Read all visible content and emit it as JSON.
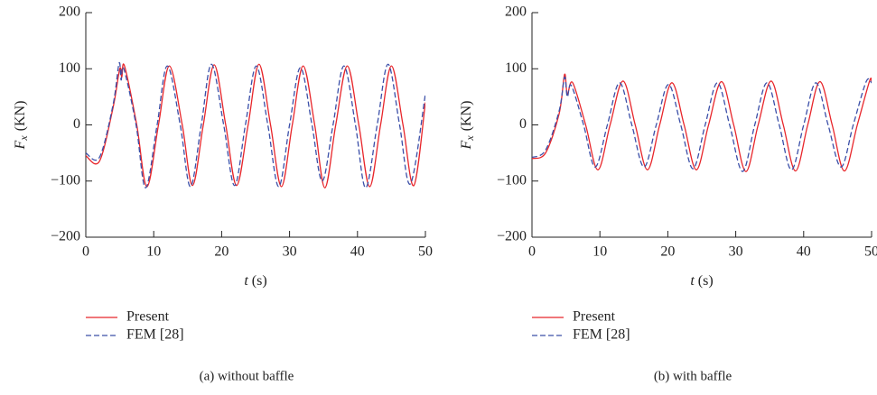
{
  "chart_data": [
    {
      "type": "line",
      "caption": "(a)  without baffle",
      "xlabel_symbol": "t",
      "xlabel_unit": "(s)",
      "ylabel_symbol": "F",
      "ylabel_subscript": "x",
      "ylabel_unit": "(KN)",
      "xlim": [
        0,
        50
      ],
      "xticks": [
        0,
        10,
        20,
        30,
        40,
        50
      ],
      "ylim": [
        -200,
        200
      ],
      "yticks": [
        {
          "value": -200,
          "label": "−200"
        },
        {
          "value": -100,
          "label": "−100"
        },
        0,
        100,
        200
      ],
      "series": [
        {
          "name": "Present",
          "color": "#e8262b",
          "dash": "solid",
          "x": [
            0,
            2,
            4,
            5,
            5.3,
            5.7,
            7.5,
            9,
            10.7,
            12.3,
            14.2,
            15.7,
            17.3,
            18.9,
            20.6,
            22.2,
            23.9,
            25.5,
            27.2,
            28.8,
            30.4,
            32,
            33.7,
            35.2,
            36.8,
            38.5,
            40.2,
            41.8,
            43.4,
            45,
            46.7,
            48.3,
            50
          ],
          "values": [
            -55,
            -65,
            30,
            100,
            85,
            105,
            0,
            -110,
            0,
            105,
            0,
            -108,
            0,
            107,
            0,
            -108,
            0,
            108,
            0,
            -110,
            0,
            105,
            0,
            -112,
            0,
            105,
            0,
            -110,
            0,
            105,
            0,
            -108,
            40
          ]
        },
        {
          "name": "FEM [28]",
          "color": "#3b4fa8",
          "dash": "dashed",
          "x": [
            0,
            2,
            4,
            4.9,
            5.2,
            5.6,
            7.4,
            8.8,
            10.5,
            12,
            13.9,
            15.4,
            17,
            18.5,
            20.3,
            21.9,
            23.5,
            25.1,
            26.8,
            28.4,
            30,
            31.6,
            33.3,
            34.8,
            36.4,
            38,
            39.7,
            41.2,
            42.9,
            44.5,
            46.2,
            47.8,
            50
          ],
          "values": [
            -50,
            -58,
            35,
            110,
            80,
            100,
            0,
            -112,
            0,
            105,
            0,
            -110,
            0,
            108,
            0,
            -108,
            0,
            105,
            0,
            -110,
            0,
            102,
            0,
            -100,
            0,
            105,
            0,
            -112,
            0,
            108,
            0,
            -105,
            55
          ]
        }
      ]
    },
    {
      "type": "line",
      "caption": "(b)  with baffle",
      "xlabel_symbol": "t",
      "xlabel_unit": "(s)",
      "ylabel_symbol": "F",
      "ylabel_subscript": "x",
      "ylabel_unit": "(KN)",
      "xlim": [
        0,
        50
      ],
      "xticks": [
        0,
        10,
        20,
        30,
        40,
        50
      ],
      "ylim": [
        -200,
        200
      ],
      "yticks": [
        {
          "value": -200,
          "label": "−200"
        },
        {
          "value": -100,
          "label": "−100"
        },
        0,
        100,
        200
      ],
      "series": [
        {
          "name": "Present",
          "color": "#e8262b",
          "dash": "solid",
          "x": [
            0,
            2,
            4,
            4.8,
            5.2,
            6,
            7.9,
            9.7,
            11.5,
            13.4,
            15.2,
            17,
            18.8,
            20.6,
            22.4,
            24.2,
            26,
            27.9,
            29.7,
            31.5,
            33.3,
            35.2,
            37,
            38.8,
            40.6,
            42.4,
            44.2,
            46,
            47.9,
            49.7,
            50
          ],
          "values": [
            -60,
            -50,
            20,
            90,
            55,
            75,
            0,
            -80,
            0,
            78,
            0,
            -80,
            0,
            75,
            0,
            -80,
            0,
            77,
            0,
            -83,
            0,
            78,
            0,
            -82,
            0,
            77,
            0,
            -82,
            0,
            78,
            76
          ]
        },
        {
          "name": "FEM [28]",
          "color": "#3b4fa8",
          "dash": "dashed",
          "x": [
            0,
            2,
            4,
            4.8,
            5.2,
            5.8,
            7.6,
            9.3,
            11.1,
            12.9,
            14.7,
            16.5,
            18.3,
            20.1,
            21.9,
            23.7,
            25.5,
            27.3,
            29.1,
            31,
            32.8,
            34.6,
            36.4,
            38.2,
            40,
            41.8,
            43.6,
            45.5,
            47.3,
            49.2,
            50
          ],
          "values": [
            -58,
            -45,
            25,
            85,
            50,
            70,
            0,
            -75,
            0,
            75,
            0,
            -75,
            0,
            72,
            0,
            -78,
            0,
            75,
            0,
            -83,
            0,
            75,
            0,
            -80,
            0,
            75,
            0,
            -75,
            0,
            77,
            75
          ]
        }
      ]
    }
  ]
}
